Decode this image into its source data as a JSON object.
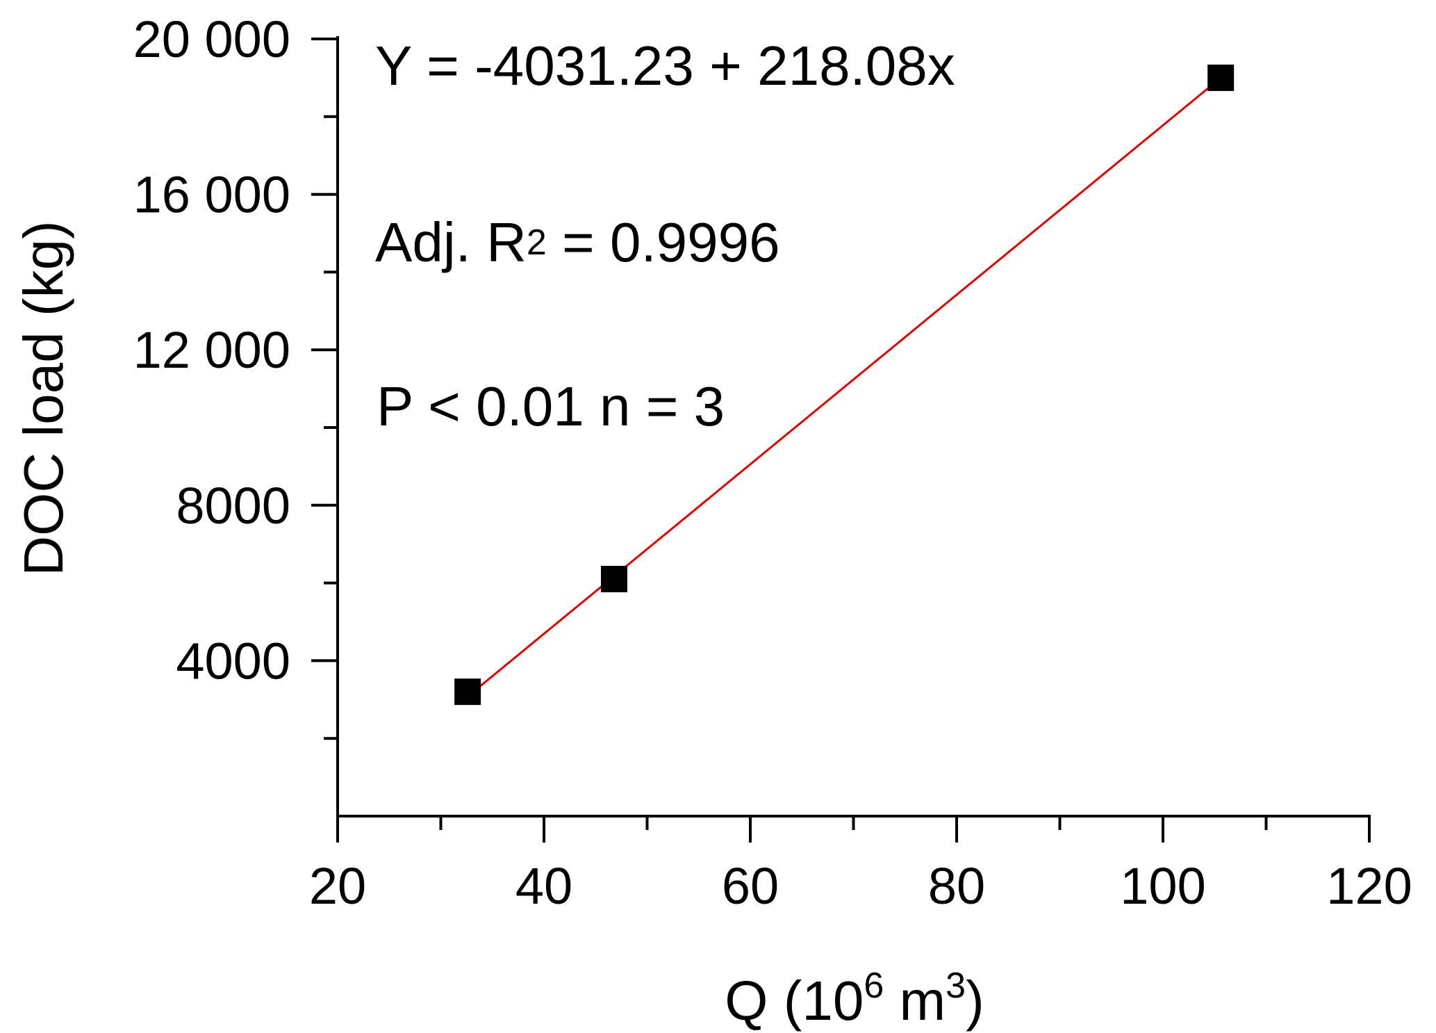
{
  "chart_data": {
    "type": "scatter",
    "title": "",
    "xlabel": "Q",
    "xlabel_unit_base": "10",
    "xlabel_unit_exp": "6",
    "xlabel_unit_m": "m",
    "xlabel_unit_m_exp": "3",
    "ylabel": "DOC load (kg)",
    "xlim": [
      20,
      120
    ],
    "ylim": [
      0,
      20000
    ],
    "x_ticks": [
      20,
      40,
      60,
      80,
      100,
      120
    ],
    "x_tick_labels": [
      "20",
      "40",
      "60",
      "80",
      "100",
      "120"
    ],
    "x_minor_ticks": [
      30,
      50,
      70,
      90,
      110
    ],
    "y_ticks": [
      4000,
      8000,
      12000,
      16000,
      20000
    ],
    "y_tick_labels": [
      "4000",
      "8000",
      "12 000",
      "16 000",
      "20 000"
    ],
    "y_minor_ticks": [
      2000,
      6000,
      10000,
      14000,
      18000
    ],
    "grid": false,
    "series": [
      {
        "marker": "square",
        "color": "#000000",
        "x": [
          32.6,
          46.8,
          105.6
        ],
        "y": [
          3200,
          6100,
          19000
        ]
      }
    ],
    "fit_line": {
      "intercept": -4031.23,
      "slope": 218.08,
      "x_range": [
        32.6,
        105.6
      ],
      "color": "#e00000"
    },
    "annotations": {
      "equation": "Y = -4031.23 + 218.08x",
      "r2_label": "Adj. R",
      "r2_sup": "2",
      "r2_value": " = 0.9996",
      "stats": "P < 0.01 n = 3"
    }
  }
}
